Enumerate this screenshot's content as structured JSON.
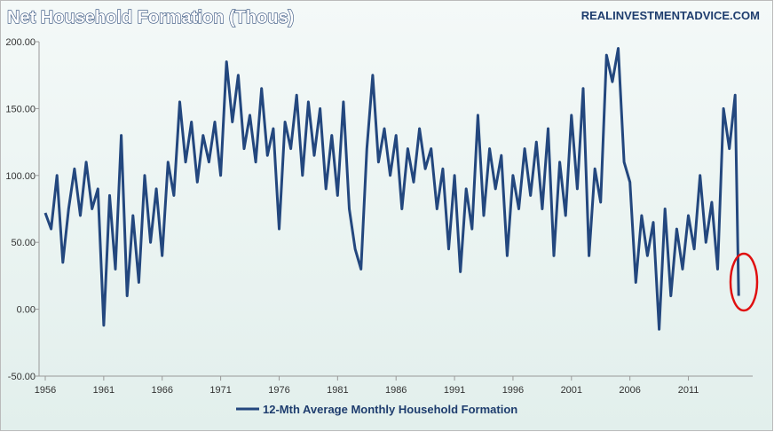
{
  "chart_data": {
    "type": "line",
    "title": "Net Household Formation (Thous)",
    "source": "REALINVESTMENTADVICE.COM",
    "xlim": [
      1956,
      2016.5
    ],
    "xticks": [
      1956,
      1961,
      1966,
      1971,
      1976,
      1981,
      1986,
      1991,
      1996,
      2001,
      2006,
      2011
    ],
    "ylim": [
      -50,
      200
    ],
    "yticks": [
      {
        "value": -50,
        "label": "-50.00"
      },
      {
        "value": 0,
        "label": "0.00"
      },
      {
        "value": 50,
        "label": "50.00"
      },
      {
        "value": 100,
        "label": "100.00"
      },
      {
        "value": 150,
        "label": "150.00"
      },
      {
        "value": 200,
        "label": "200.00"
      }
    ],
    "grid": false,
    "x": [
      1956,
      1956.5,
      1957,
      1957.5,
      1958,
      1958.5,
      1959,
      1959.5,
      1960,
      1960.5,
      1961,
      1961.5,
      1962,
      1962.5,
      1963,
      1963.5,
      1964,
      1964.5,
      1965,
      1965.5,
      1966,
      1966.5,
      1967,
      1967.5,
      1968,
      1968.5,
      1969,
      1969.5,
      1970,
      1970.5,
      1971,
      1971.5,
      1972,
      1972.5,
      1973,
      1973.5,
      1974,
      1974.5,
      1975,
      1975.5,
      1976,
      1976.5,
      1977,
      1977.5,
      1978,
      1978.5,
      1979,
      1979.5,
      1980,
      1980.5,
      1981,
      1981.5,
      1982,
      1982.5,
      1983,
      1983.5,
      1984,
      1984.5,
      1985,
      1985.5,
      1986,
      1986.5,
      1987,
      1987.5,
      1988,
      1988.5,
      1989,
      1989.5,
      1990,
      1990.5,
      1991,
      1991.5,
      1992,
      1992.5,
      1993,
      1993.5,
      1994,
      1994.5,
      1995,
      1995.5,
      1996,
      1996.5,
      1997,
      1997.5,
      1998,
      1998.5,
      1999,
      1999.5,
      2000,
      2000.5,
      2001,
      2001.5,
      2002,
      2002.5,
      2003,
      2003.5,
      2004,
      2004.5,
      2005,
      2005.5,
      2006,
      2006.5,
      2007,
      2007.5,
      2008,
      2008.5,
      2009,
      2009.5,
      2010,
      2010.5,
      2011,
      2011.5,
      2012,
      2012.5,
      2013,
      2013.5,
      2014,
      2014.5,
      2015,
      2015.3
    ],
    "series": [
      {
        "name": "12-Mth Average Monthly Household Formation",
        "color": "#23477e",
        "values": [
          72,
          60,
          100,
          35,
          75,
          105,
          70,
          110,
          75,
          90,
          -12,
          85,
          30,
          130,
          10,
          70,
          20,
          100,
          50,
          90,
          40,
          110,
          85,
          155,
          110,
          140,
          95,
          130,
          110,
          140,
          100,
          185,
          140,
          175,
          120,
          145,
          110,
          165,
          115,
          135,
          60,
          140,
          120,
          160,
          100,
          155,
          115,
          150,
          90,
          130,
          85,
          155,
          75,
          45,
          30,
          120,
          175,
          110,
          135,
          100,
          130,
          75,
          120,
          95,
          135,
          105,
          120,
          75,
          105,
          45,
          100,
          28,
          90,
          60,
          145,
          70,
          120,
          90,
          115,
          40,
          100,
          75,
          120,
          85,
          125,
          75,
          135,
          40,
          110,
          70,
          145,
          90,
          165,
          40,
          105,
          80,
          190,
          170,
          195,
          110,
          95,
          20,
          70,
          40,
          65,
          -15,
          75,
          10,
          60,
          30,
          70,
          45,
          100,
          50,
          80,
          30,
          150,
          120,
          160,
          10
        ]
      }
    ]
  }
}
